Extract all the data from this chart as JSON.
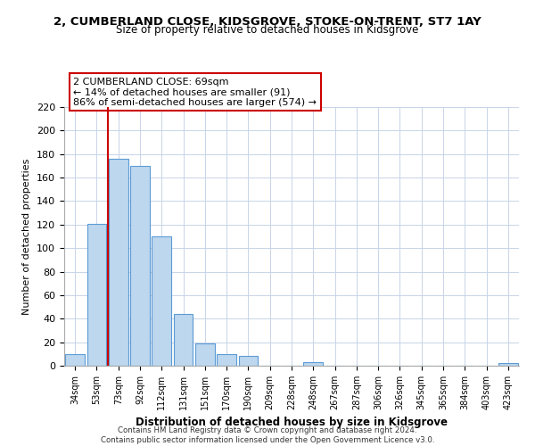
{
  "title_line1": "2, CUMBERLAND CLOSE, KIDSGROVE, STOKE-ON-TRENT, ST7 1AY",
  "title_line2": "Size of property relative to detached houses in Kidsgrove",
  "xlabel": "Distribution of detached houses by size in Kidsgrove",
  "ylabel": "Number of detached properties",
  "bar_labels": [
    "34sqm",
    "53sqm",
    "73sqm",
    "92sqm",
    "112sqm",
    "131sqm",
    "151sqm",
    "170sqm",
    "190sqm",
    "209sqm",
    "228sqm",
    "248sqm",
    "267sqm",
    "287sqm",
    "306sqm",
    "326sqm",
    "345sqm",
    "365sqm",
    "384sqm",
    "403sqm",
    "423sqm"
  ],
  "bar_values": [
    10,
    121,
    176,
    170,
    110,
    44,
    19,
    10,
    8,
    0,
    0,
    3,
    0,
    0,
    0,
    0,
    0,
    0,
    0,
    0,
    2
  ],
  "bar_color": "#bdd7ee",
  "bar_edge_color": "#5b9bd5",
  "vline_x": 1.5,
  "vline_color": "#cc0000",
  "annotation_title": "2 CUMBERLAND CLOSE: 69sqm",
  "annotation_line2": "← 14% of detached houses are smaller (91)",
  "annotation_line3": "86% of semi-detached houses are larger (574) →",
  "annotation_box_edge": "#cc0000",
  "ylim": [
    0,
    220
  ],
  "yticks": [
    0,
    20,
    40,
    60,
    80,
    100,
    120,
    140,
    160,
    180,
    200,
    220
  ],
  "footer_line1": "Contains HM Land Registry data © Crown copyright and database right 2024.",
  "footer_line2": "Contains public sector information licensed under the Open Government Licence v3.0.",
  "bg_color": "#ffffff",
  "grid_color": "#c8d4e8"
}
